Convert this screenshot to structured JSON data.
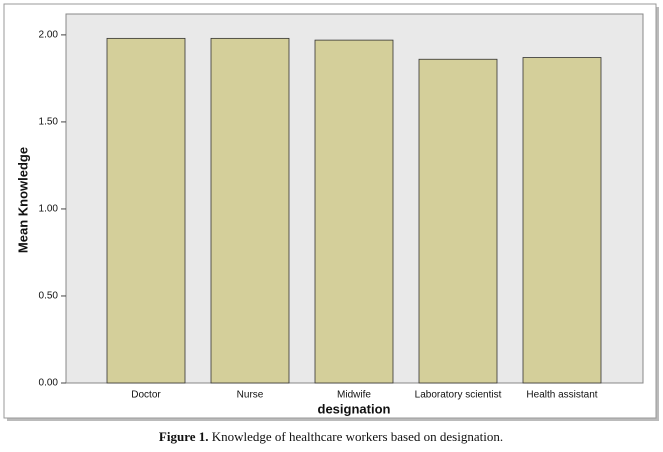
{
  "chart_data": {
    "type": "bar",
    "categories": [
      "Doctor",
      "Nurse",
      "Midwife",
      "Laboratory scientist",
      "Health assistant"
    ],
    "values": [
      1.98,
      1.98,
      1.97,
      1.86,
      1.87
    ],
    "color": "#d4cf9a",
    "x_label": "designation",
    "y_label": "Mean Knowledge",
    "ylim": [
      0,
      2.12
    ],
    "yticks": [
      {
        "value": 0,
        "label": "0.00"
      },
      {
        "value": 0.5,
        "label": "0.50"
      },
      {
        "value": 1,
        "label": "1.00"
      },
      {
        "value": 1.5,
        "label": "1.50"
      },
      {
        "value": 2,
        "label": "2.00"
      }
    ],
    "caption_label": "Figure 1.",
    "caption": "Knowledge of healthcare workers based on designation."
  }
}
